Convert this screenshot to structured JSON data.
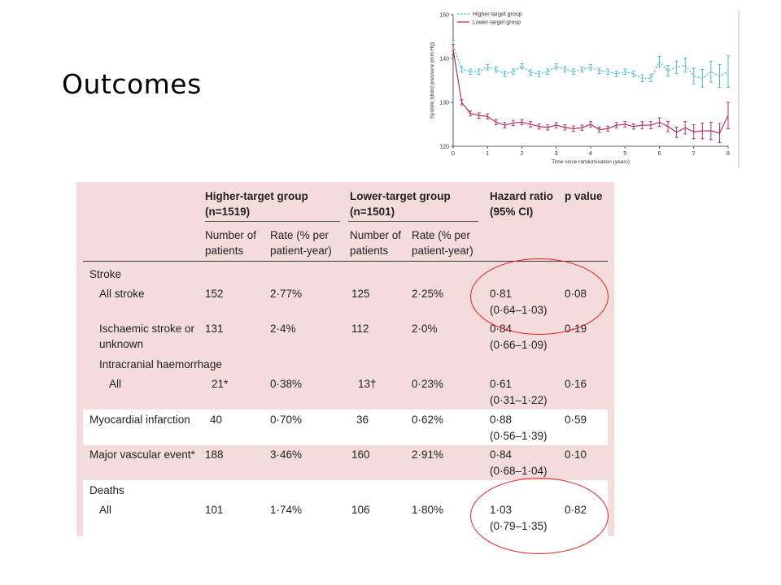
{
  "slide": {
    "title": "Outcomes"
  },
  "chart_data": {
    "type": "line",
    "ylabel": "Systolic blood pressure (mm Hg)",
    "xlabel": "Time since randomisation (years)",
    "ylim": [
      120,
      150
    ],
    "xlim": [
      0,
      8
    ],
    "yticks": [
      "150",
      "140",
      "130",
      "120"
    ],
    "xticks": [
      "0",
      "1",
      "2",
      "3",
      "4",
      "5",
      "6",
      "7",
      "8"
    ],
    "legend_position": "top-left",
    "colors": {
      "higher": "#3eb5c8",
      "lower": "#b0234e"
    },
    "series": [
      {
        "name": "Higher-target group",
        "style": "dashed",
        "x": [
          0,
          0.25,
          0.5,
          0.75,
          1,
          1.25,
          1.5,
          1.75,
          2,
          2.25,
          2.5,
          2.75,
          3,
          3.25,
          3.5,
          3.75,
          4,
          4.25,
          4.5,
          4.75,
          5,
          5.25,
          5.5,
          5.75,
          6,
          6.25,
          6.5,
          6.75,
          7,
          7.25,
          7.5,
          7.75,
          8
        ],
        "values": [
          143,
          137.5,
          137,
          137,
          138,
          137.5,
          136.5,
          137,
          138.2,
          136.8,
          136.5,
          137,
          138.2,
          137.5,
          137,
          137.5,
          138,
          137.2,
          137,
          136.5,
          137,
          136.5,
          135.5,
          135.5,
          139.3,
          137.2,
          138,
          138.5,
          136,
          135.5,
          137,
          136,
          137
        ],
        "errors": [
          1.2,
          0.6,
          0.6,
          0.6,
          0.6,
          0.6,
          0.6,
          0.6,
          0.6,
          0.6,
          0.6,
          0.6,
          0.6,
          0.6,
          0.6,
          0.6,
          0.6,
          0.6,
          0.6,
          0.6,
          0.6,
          0.6,
          0.8,
          0.8,
          1.2,
          1.2,
          1.4,
          1.6,
          1.8,
          2,
          2.4,
          2.6,
          3.6
        ]
      },
      {
        "name": "Lower-target group",
        "style": "solid",
        "x": [
          0,
          0.25,
          0.5,
          0.75,
          1,
          1.25,
          1.5,
          1.75,
          2,
          2.25,
          2.5,
          2.75,
          3,
          3.25,
          3.5,
          3.75,
          4,
          4.25,
          4.5,
          4.75,
          5,
          5.25,
          5.5,
          5.75,
          6,
          6.25,
          6.5,
          6.75,
          7,
          7.25,
          7.5,
          7.75,
          8
        ],
        "values": [
          142,
          130,
          127.5,
          127,
          126.8,
          125.5,
          124.8,
          125.3,
          125.5,
          125,
          124.5,
          124.3,
          124.8,
          124.3,
          124,
          124.2,
          125,
          123.8,
          124,
          124.8,
          125,
          124.5,
          124.8,
          124.8,
          125.5,
          124.5,
          123.2,
          124.2,
          123.3,
          123.5,
          123.5,
          123,
          127
        ],
        "errors": [
          1.2,
          0.6,
          0.6,
          0.6,
          0.6,
          0.6,
          0.6,
          0.6,
          0.6,
          0.6,
          0.6,
          0.6,
          0.6,
          0.6,
          0.6,
          0.6,
          0.6,
          0.6,
          0.6,
          0.6,
          0.6,
          0.6,
          0.8,
          0.8,
          1,
          1.2,
          1.2,
          1.4,
          1.6,
          1.8,
          2,
          2.2,
          3
        ]
      }
    ]
  },
  "table": {
    "headers": {
      "higher_group": "Higher-target group (n=1519)",
      "lower_group": "Lower-target group (n=1501)",
      "hazard": "Hazard ratio (95% CI)",
      "pvalue": "p value",
      "num_patients": "Number of patients",
      "rate": "Rate (% per patient-year)"
    },
    "sections": {
      "stroke": "Stroke",
      "intracranial": "Intracranial haemorrhage",
      "deaths": "Deaths"
    },
    "rows": {
      "all_stroke": {
        "label": "All stroke",
        "hi_n": "152",
        "hi_rate": "2·77%",
        "lo_n": "125",
        "lo_rate": "2·25%",
        "hr": "0·81",
        "ci": "(0·64–1·03)",
        "p": "0·08"
      },
      "ischaemic": {
        "label": "Ischaemic stroke or unknown",
        "hi_n": "131",
        "hi_rate": "2·4%",
        "lo_n": "112",
        "lo_rate": "2·0%",
        "hr": "0·84",
        "ci": "(0·66–1·09)",
        "p": "0·19"
      },
      "ich_all": {
        "label": "All",
        "hi_n": "21*",
        "hi_rate": "0·38%",
        "lo_n": "13†",
        "lo_rate": "0·23%",
        "hr": "0·61",
        "ci": "(0·31–1·22)",
        "p": "0·16"
      },
      "mi": {
        "label": "Myocardial infarction",
        "hi_n": "40",
        "hi_rate": "0·70%",
        "lo_n": "36",
        "lo_rate": "0·62%",
        "hr": "0·88",
        "ci": "(0·56–1·39)",
        "p": "0·59"
      },
      "mve": {
        "label": "Major vascular event*",
        "hi_n": "188",
        "hi_rate": "3·46%",
        "lo_n": "160",
        "lo_rate": "2·91%",
        "hr": "0·84",
        "ci": "(0·68–1·04)",
        "p": "0·10"
      },
      "deaths_all": {
        "label": "All",
        "hi_n": "101",
        "hi_rate": "1·74%",
        "lo_n": "106",
        "lo_rate": "1·80%",
        "hr": "1·03",
        "ci": "(0·79–1·35)",
        "p": "0·82"
      }
    }
  }
}
